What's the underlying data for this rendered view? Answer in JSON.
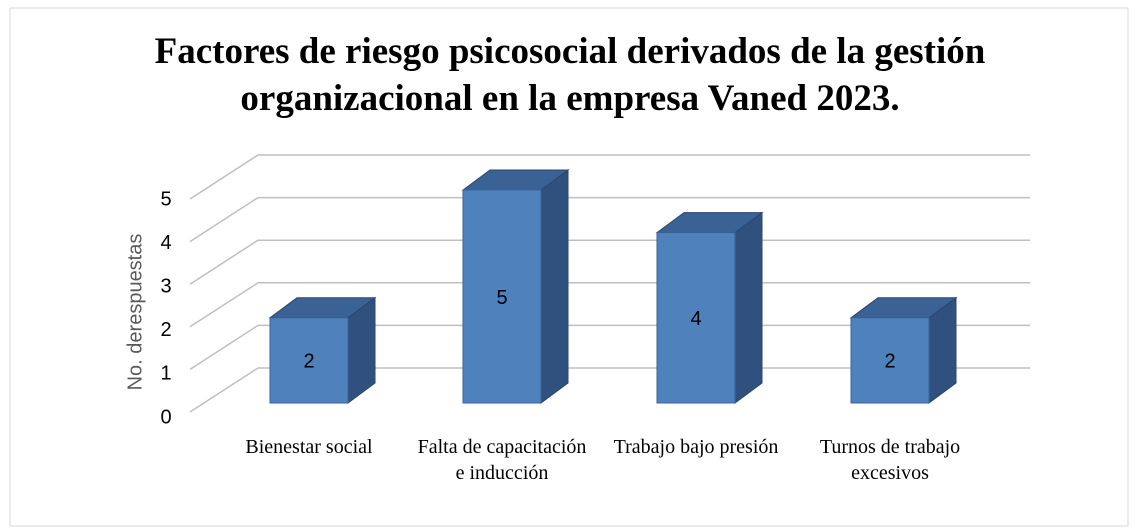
{
  "chart_data": {
    "type": "bar3d",
    "title": "Factores de riesgo psicosocial derivados de la gestión organizacional en la empresa Vaned 2023.",
    "y_label": "No. derespuestas",
    "categories": [
      "Bienestar social",
      "Falta de capacitación e inducción",
      "Trabajo bajo presión",
      "Turnos de trabajo excesivos"
    ],
    "values": [
      2,
      5,
      4,
      2
    ],
    "color": "#4f81bd",
    "ylim": [
      0,
      5
    ],
    "yticks": [
      0,
      1,
      2,
      3,
      4,
      5
    ],
    "grid": true
  }
}
